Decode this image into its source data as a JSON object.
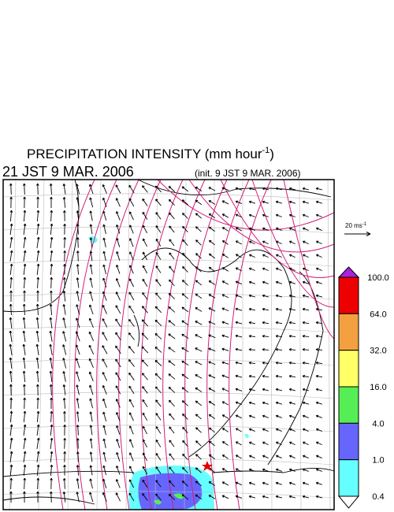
{
  "title": {
    "text": "PRECIPITATION INTENSITY (mm hour",
    "superscript": "-1",
    "close": ")"
  },
  "valid_time": "21 JST 9 MAR. 2006",
  "init_time": "(init. 9 JST 9 MAR. 2006)",
  "vector_legend": {
    "text": "20 ms",
    "superscript": "-1"
  },
  "colorbar": {
    "labels": [
      "100.0",
      "64.0",
      "32.0",
      "16.0",
      "4.0",
      "1.0",
      "0.4"
    ],
    "colors": [
      "#ee0000",
      "#f4a040",
      "#ffff66",
      "#55ee55",
      "#6666ff",
      "#66ffff"
    ],
    "over_color": "#aa22dd",
    "under_color": "#ffffff"
  }
}
